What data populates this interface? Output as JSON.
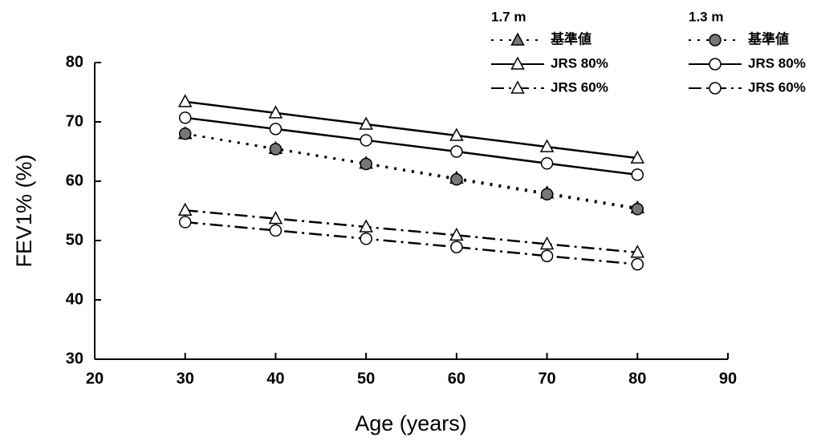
{
  "chart_data": {
    "type": "line",
    "x_label": "Age (years)",
    "y_label": "FEV1% (%)",
    "x": [
      30,
      40,
      50,
      60,
      70,
      80
    ],
    "xlim": [
      20,
      90
    ],
    "xticks": [
      20,
      30,
      40,
      50,
      60,
      70,
      80,
      90
    ],
    "ylim": [
      30,
      80
    ],
    "yticks": [
      30,
      40,
      50,
      60,
      70,
      80
    ],
    "grid": false,
    "groups": [
      {
        "name": "1.7 m",
        "series": [
          {
            "name": "基準値",
            "color": "#000000",
            "marker": "triangle",
            "filled": true,
            "dash": "dotted",
            "values": [
              68.0,
              65.5,
              63.0,
              60.5,
              58.0,
              55.5
            ]
          },
          {
            "name": "JRS 80%",
            "color": "#000000",
            "marker": "triangle",
            "filled": false,
            "dash": "solid",
            "values": [
              73.4,
              71.5,
              69.6,
              67.7,
              65.8,
              63.9
            ]
          },
          {
            "name": "JRS 60%",
            "color": "#000000",
            "marker": "triangle",
            "filled": false,
            "dash": "dashdot",
            "values": [
              55.1,
              53.7,
              52.3,
              50.9,
              49.4,
              48.0
            ]
          }
        ]
      },
      {
        "name": "1.3 m",
        "series": [
          {
            "name": "基準値",
            "color": "#000000",
            "marker": "circle",
            "filled": true,
            "dash": "dotted",
            "values": [
              68.0,
              65.4,
              62.9,
              60.3,
              57.8,
              55.3
            ]
          },
          {
            "name": "JRS 80%",
            "color": "#000000",
            "marker": "circle",
            "filled": false,
            "dash": "solid",
            "values": [
              70.7,
              68.8,
              66.9,
              65.0,
              63.0,
              61.1
            ]
          },
          {
            "name": "JRS 60%",
            "color": "#000000",
            "marker": "circle",
            "filled": false,
            "dash": "dashdot",
            "values": [
              53.1,
              51.7,
              50.3,
              48.9,
              47.4,
              46.0
            ]
          }
        ]
      }
    ]
  }
}
